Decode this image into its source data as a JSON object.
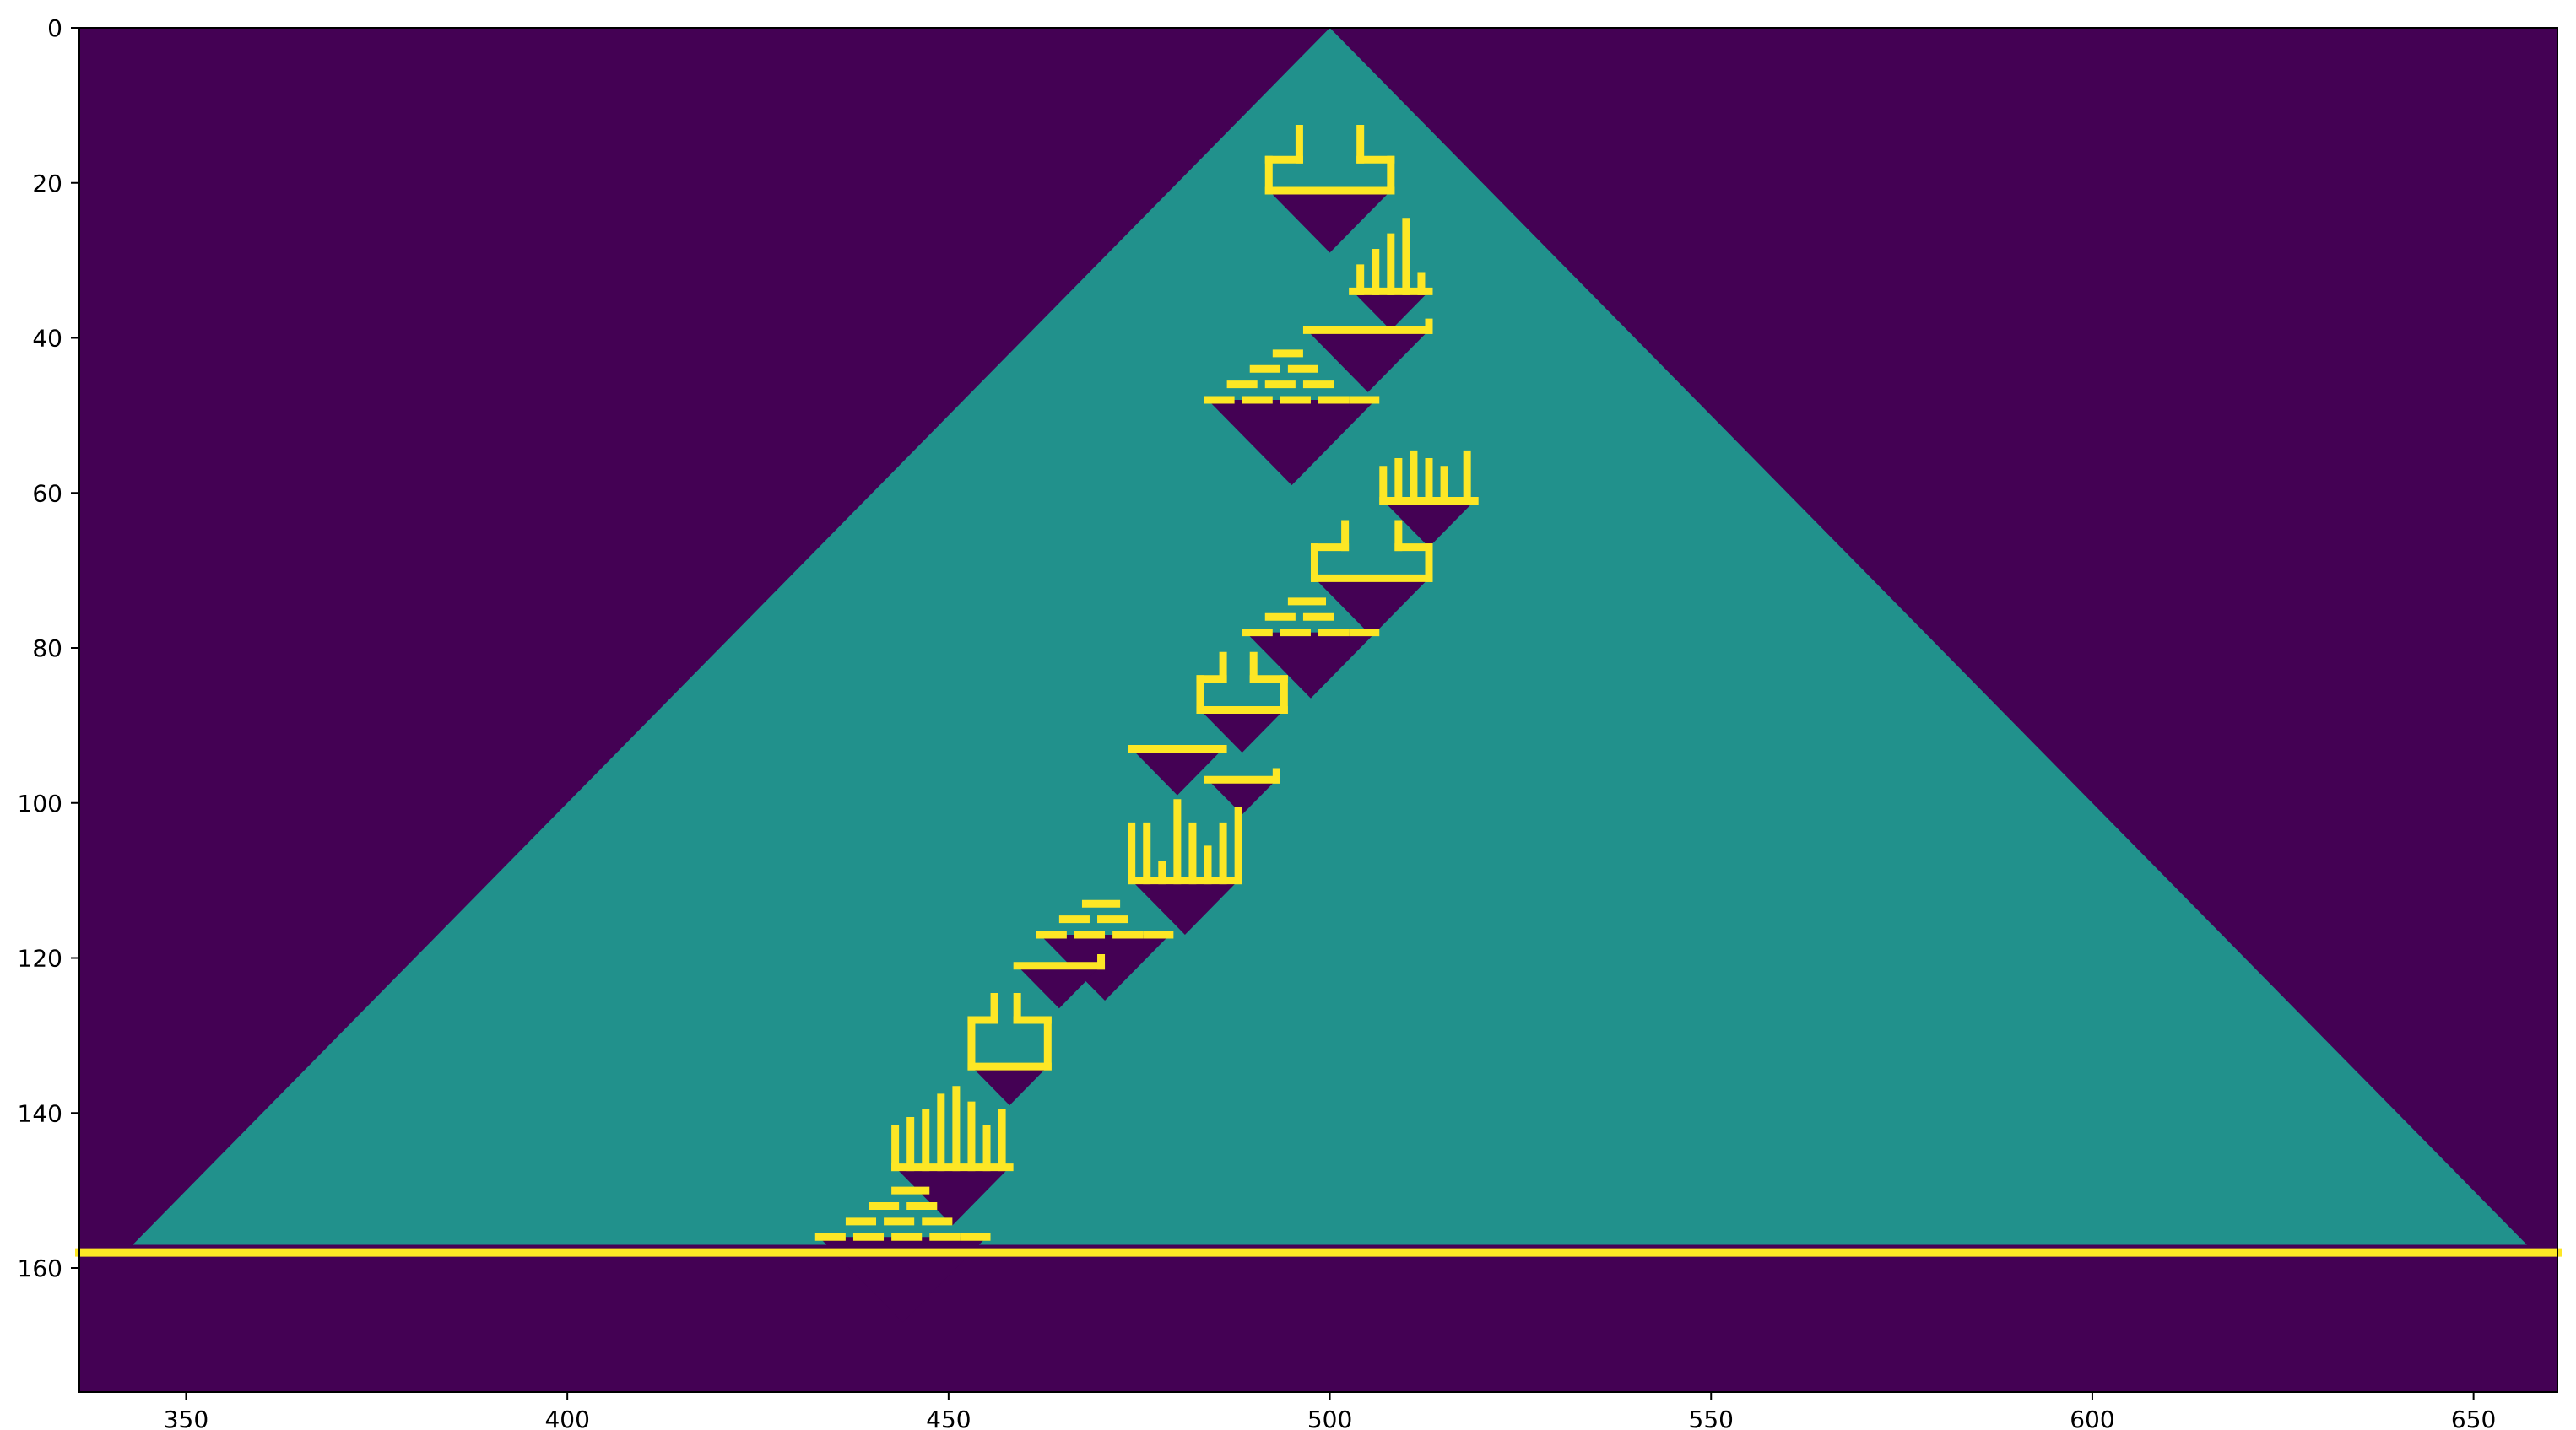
{
  "chart_data": {
    "type": "heatmap",
    "title": "",
    "xlabel": "",
    "ylabel": "",
    "xlim": [
      336,
      661
    ],
    "ylim": [
      176,
      0
    ],
    "grid": false,
    "legend": null,
    "colors": {
      "background": "#440154",
      "triangle": "#21918c",
      "pattern": "#fde725"
    },
    "xticks": [
      350,
      400,
      450,
      500,
      550,
      600,
      650
    ],
    "yticks": [
      0,
      20,
      40,
      60,
      80,
      100,
      120,
      140,
      160
    ],
    "triangle": {
      "apex": [
        500,
        0
      ],
      "base_left": [
        343,
        157
      ],
      "base_right": [
        657,
        157
      ]
    },
    "baseline_row": 158,
    "yellow_segments": [
      [
        336,
        158,
        661,
        158
      ],
      [
        492,
        17,
        496,
        17
      ],
      [
        492,
        17,
        492,
        21
      ],
      [
        492,
        21,
        508,
        21
      ],
      [
        508,
        17,
        508,
        21
      ],
      [
        504,
        17,
        508,
        17
      ],
      [
        496,
        13,
        496,
        17
      ],
      [
        504,
        13,
        504,
        17
      ],
      [
        503,
        34,
        513,
        34
      ],
      [
        504,
        31,
        504,
        34
      ],
      [
        506,
        29,
        506,
        34
      ],
      [
        508,
        27,
        508,
        34
      ],
      [
        510,
        25,
        510,
        34
      ],
      [
        512,
        32,
        512,
        34
      ],
      [
        497,
        39,
        513,
        39
      ],
      [
        513,
        38,
        513,
        39
      ],
      [
        493,
        42,
        496,
        42
      ],
      [
        490,
        44,
        493,
        44
      ],
      [
        495,
        44,
        498,
        44
      ],
      [
        487,
        46,
        490,
        46
      ],
      [
        492,
        46,
        495,
        46
      ],
      [
        497,
        46,
        500,
        46
      ],
      [
        484,
        48,
        487,
        48
      ],
      [
        489,
        48,
        492,
        48
      ],
      [
        494,
        48,
        497,
        48
      ],
      [
        499,
        48,
        502,
        48
      ],
      [
        503,
        48,
        506,
        48
      ],
      [
        507,
        61,
        519,
        61
      ],
      [
        507,
        57,
        507,
        61
      ],
      [
        509,
        56,
        509,
        61
      ],
      [
        511,
        55,
        511,
        61
      ],
      [
        513,
        56,
        513,
        61
      ],
      [
        515,
        57,
        515,
        61
      ],
      [
        518,
        55,
        518,
        61
      ],
      [
        498,
        67,
        502,
        67
      ],
      [
        498,
        67,
        498,
        71
      ],
      [
        498,
        71,
        513,
        71
      ],
      [
        513,
        67,
        513,
        71
      ],
      [
        509,
        67,
        513,
        67
      ],
      [
        502,
        64,
        502,
        67
      ],
      [
        509,
        64,
        509,
        67
      ],
      [
        495,
        74,
        499,
        74
      ],
      [
        492,
        76,
        495,
        76
      ],
      [
        497,
        76,
        500,
        76
      ],
      [
        489,
        78,
        492,
        78
      ],
      [
        494,
        78,
        497,
        78
      ],
      [
        499,
        78,
        502,
        78
      ],
      [
        503,
        78,
        506,
        78
      ],
      [
        483,
        84,
        486,
        84
      ],
      [
        483,
        84,
        483,
        88
      ],
      [
        483,
        88,
        494,
        88
      ],
      [
        494,
        84,
        494,
        88
      ],
      [
        490,
        84,
        494,
        84
      ],
      [
        486,
        81,
        486,
        84
      ],
      [
        490,
        81,
        490,
        84
      ],
      [
        474,
        93,
        486,
        93
      ],
      [
        484,
        97,
        493,
        97
      ],
      [
        493,
        96,
        493,
        97
      ],
      [
        474,
        110,
        488,
        110
      ],
      [
        474,
        103,
        474,
        110
      ],
      [
        476,
        103,
        476,
        110
      ],
      [
        478,
        108,
        478,
        110
      ],
      [
        480,
        100,
        480,
        110
      ],
      [
        482,
        103,
        482,
        110
      ],
      [
        484,
        106,
        484,
        110
      ],
      [
        486,
        103,
        486,
        110
      ],
      [
        488,
        101,
        488,
        110
      ],
      [
        468,
        113,
        472,
        113
      ],
      [
        465,
        115,
        468,
        115
      ],
      [
        470,
        115,
        473,
        115
      ],
      [
        462,
        117,
        465,
        117
      ],
      [
        467,
        117,
        470,
        117
      ],
      [
        472,
        117,
        475,
        117
      ],
      [
        476,
        117,
        479,
        117
      ],
      [
        459,
        121,
        470,
        121
      ],
      [
        470,
        120,
        470,
        121
      ],
      [
        453,
        128,
        453,
        134
      ],
      [
        453,
        134,
        463,
        134
      ],
      [
        463,
        128,
        463,
        134
      ],
      [
        459,
        128,
        463,
        128
      ],
      [
        453,
        128,
        456,
        128
      ],
      [
        456,
        125,
        456,
        128
      ],
      [
        459,
        125,
        459,
        128
      ],
      [
        443,
        147,
        458,
        147
      ],
      [
        443,
        142,
        443,
        147
      ],
      [
        445,
        141,
        445,
        147
      ],
      [
        447,
        140,
        447,
        147
      ],
      [
        449,
        138,
        449,
        147
      ],
      [
        451,
        137,
        451,
        147
      ],
      [
        453,
        139,
        453,
        147
      ],
      [
        455,
        142,
        455,
        147
      ],
      [
        457,
        140,
        457,
        147
      ],
      [
        443,
        150,
        447,
        150
      ],
      [
        440,
        152,
        443,
        152
      ],
      [
        445,
        152,
        448,
        152
      ],
      [
        437,
        154,
        440,
        154
      ],
      [
        442,
        154,
        445,
        154
      ],
      [
        447,
        154,
        450,
        154
      ],
      [
        433,
        156,
        436,
        156
      ],
      [
        438,
        156,
        441,
        156
      ],
      [
        443,
        156,
        446,
        156
      ],
      [
        448,
        156,
        451,
        156
      ],
      [
        452,
        156,
        455,
        156
      ]
    ],
    "notches": [
      [
        492,
        21,
        508,
        21
      ],
      [
        503,
        34,
        513,
        34
      ],
      [
        497,
        39,
        513,
        39
      ],
      [
        484,
        48,
        506,
        48
      ],
      [
        507,
        61,
        519,
        61
      ],
      [
        498,
        71,
        513,
        71
      ],
      [
        489,
        78,
        506,
        78
      ],
      [
        483,
        88,
        494,
        88
      ],
      [
        474,
        93,
        486,
        93
      ],
      [
        484,
        97,
        493,
        97
      ],
      [
        474,
        110,
        488,
        110
      ],
      [
        462,
        117,
        479,
        117
      ],
      [
        459,
        121,
        470,
        121
      ],
      [
        453,
        134,
        463,
        134
      ],
      [
        443,
        147,
        458,
        147
      ],
      [
        433,
        156,
        455,
        156
      ]
    ]
  }
}
